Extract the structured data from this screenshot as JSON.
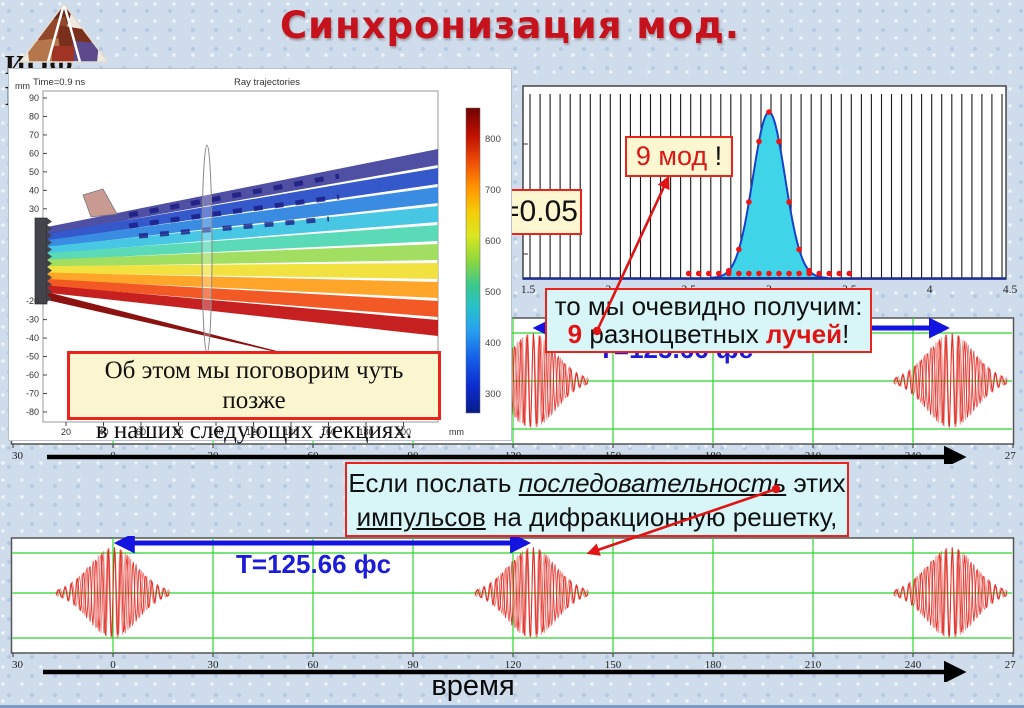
{
  "slide": {
    "title": "Синхронизация мод.",
    "logo_text": "ИОФ РАН",
    "time_axis_label": "время"
  },
  "callouts": {
    "nine_modes": {
      "text": "9 мод",
      "suffix": " !"
    },
    "delta_label": "=0.05",
    "result": {
      "line1": "то мы очевидно получим:",
      "count": "9",
      "middle": " разноцветных ",
      "emph": "лучей",
      "end": "!"
    },
    "later": {
      "line1": "Об этом мы поговорим чуть позже",
      "line2": "в наших следующих лекциях."
    },
    "send": {
      "p1": "Если послать ",
      "seq": "последовательность",
      "p2": " этих",
      "p3": "импульсов",
      "p4": " на дифракционную решетку,"
    }
  },
  "chart_data": [
    {
      "id": "ray_trajectories",
      "type": "line",
      "title": "Ray trajectories",
      "time_label": "Time=0.9 ns",
      "x_unit": "mm",
      "y_axis_unit": "mm",
      "xticks": [
        20,
        40,
        60,
        80,
        100,
        120,
        140,
        160,
        180,
        200
      ],
      "yticks": [
        90,
        80,
        70,
        60,
        50,
        40,
        30,
        -20,
        -30,
        -40,
        -50,
        -60,
        -70,
        -80
      ],
      "colorbar_ticks": [
        800,
        700,
        600,
        500,
        400,
        300
      ],
      "ray_colors": [
        "#46469e",
        "#2a50c8",
        "#2f86e0",
        "#3ec4e4",
        "#52d8b4",
        "#9cdc5a",
        "#f0e038",
        "#ffa01e",
        "#f25018",
        "#c41414",
        "#8c1212"
      ],
      "n_beams": 9
    },
    {
      "id": "mode_spectrum",
      "type": "line",
      "xlim": [
        1.5,
        4.5
      ],
      "xticks": [
        1.5,
        2,
        2.5,
        3,
        3.5,
        4,
        4.5
      ],
      "mode_spacing": 0.0625,
      "envelope_center": 3.0,
      "envelope_sigma": 0.1,
      "n_modes": 9,
      "marker_range": [
        2.5,
        3.55
      ],
      "fill_color": "#3fd4e8",
      "outline_color": "#1840c8",
      "marker_color": "#ee1414",
      "comb_color": "#1a1a1a"
    },
    {
      "id": "pulse_train_upper",
      "type": "line",
      "xlim": [
        -30,
        270
      ],
      "xticks": [
        -30,
        0,
        30,
        60,
        90,
        120,
        150,
        180,
        210,
        240,
        270
      ],
      "pulse_centers": [
        0,
        125.66,
        251.32
      ],
      "period_fs": 125.66,
      "period_label": "Т=125.66 фс",
      "arrow_span": [
        125.66,
        251.32
      ],
      "grid_color": "#2ed42e",
      "wave_color": "#e02820"
    },
    {
      "id": "pulse_train_lower",
      "type": "line",
      "xlim": [
        -30,
        270
      ],
      "xticks": [
        -30,
        0,
        30,
        60,
        90,
        120,
        150,
        180,
        210,
        240,
        270
      ],
      "pulse_centers": [
        0,
        125.66,
        251.32
      ],
      "period_fs": 125.66,
      "period_label": "T=125.66 фс",
      "arrow_span": [
        0,
        125.66
      ],
      "grid_color": "#2ed42e",
      "wave_color": "#e02820"
    }
  ]
}
